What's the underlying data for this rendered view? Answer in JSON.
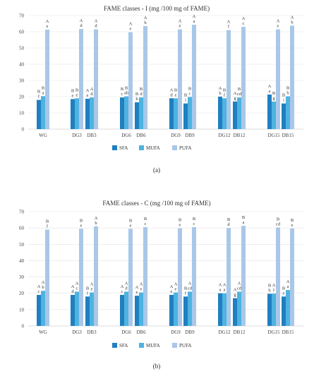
{
  "chart_data": [
    {
      "type": "bar",
      "title": "FAME classes - I     (mg /100 mg of FAME)",
      "caption": "(a)",
      "categories": [
        "WG",
        "DG3",
        "DB3",
        "DG6",
        "DB6",
        "DG9",
        "DB9",
        "DG12",
        "DB12",
        "DG15",
        "DB15"
      ],
      "ylim": [
        0,
        70
      ],
      "yticks": [
        0,
        10,
        20,
        30,
        40,
        50,
        60,
        70
      ],
      "grid": true,
      "legend": "bottom",
      "colors": [
        "#1f7fc1",
        "#4eb3e0",
        "#a9c7e8"
      ],
      "series": [
        {
          "name": "SFA",
          "values": [
            18.0,
            18.5,
            18.7,
            19.5,
            16.5,
            19.0,
            15.8,
            20.0,
            17.0,
            21.3,
            15.8
          ],
          "labels": [
            [
              "B",
              "f"
            ],
            [
              "B",
              "e"
            ],
            [
              "A",
              "e"
            ],
            [
              "B",
              "c"
            ],
            [
              "B",
              "h"
            ],
            [
              "A",
              "d"
            ],
            [
              "B",
              "i"
            ],
            [
              "A",
              "b"
            ],
            [
              "A",
              "g"
            ],
            [
              "A",
              "a"
            ],
            [
              "B",
              "i"
            ]
          ]
        },
        {
          "name": "MUFA",
          "values": [
            20.3,
            19.0,
            19.5,
            20.2,
            19.5,
            19.0,
            19.8,
            19.0,
            19.5,
            17.0,
            20.2
          ],
          "labels": [
            [
              "B",
              "a"
            ],
            [
              "B",
              "e"
            ],
            [
              "A",
              "d"
            ],
            [
              "B",
              "ab"
            ],
            [
              "B",
              "d"
            ],
            [
              "B",
              "e"
            ],
            [
              "B",
              "c"
            ],
            [
              "B",
              "f"
            ],
            [
              "B",
              "cd"
            ],
            [
              "B",
              "g"
            ],
            [
              "B",
              "b"
            ]
          ]
        },
        {
          "name": "PUFA",
          "values": [
            61.3,
            61.7,
            61.5,
            59.7,
            63.5,
            61.5,
            64.3,
            61.0,
            63.0,
            61.5,
            63.8
          ],
          "labels": [
            [
              "A",
              "e"
            ],
            [
              "A",
              "d"
            ],
            [
              "A",
              "d"
            ],
            [
              "A",
              "e"
            ],
            [
              "A",
              "b"
            ],
            [
              "A",
              "e"
            ],
            [
              "A",
              "a"
            ],
            [
              "A",
              "f"
            ],
            [
              "A",
              "c"
            ],
            [
              "A",
              "e"
            ],
            [
              "A",
              "b"
            ]
          ]
        }
      ]
    },
    {
      "type": "bar",
      "title": "FAME classes - C     (mg /100 mg of FAME)",
      "caption": "(b)",
      "categories": [
        "WG",
        "DG3",
        "DB3",
        "DG6",
        "DB6",
        "DG9",
        "DB9",
        "DG12",
        "DB12",
        "DG15",
        "DB15"
      ],
      "ylim": [
        0,
        70
      ],
      "yticks": [
        0,
        10,
        20,
        30,
        40,
        50,
        60,
        70
      ],
      "grid": true,
      "legend": "bottom",
      "colors": [
        "#1f7fc1",
        "#4eb3e0",
        "#a9c7e8"
      ],
      "series": [
        {
          "name": "SFA",
          "values": [
            19.0,
            19.0,
            18.0,
            19.0,
            18.5,
            19.0,
            18.0,
            20.0,
            17.0,
            19.7,
            18.0
          ],
          "labels": [
            [
              "A",
              "c"
            ],
            [
              "A",
              "d"
            ],
            [
              "B",
              "f"
            ],
            [
              "A",
              "c"
            ],
            [
              "A",
              "e"
            ],
            [
              "A",
              "e"
            ],
            [
              "B",
              "f"
            ],
            [
              "A",
              "a"
            ],
            [
              "A",
              "g"
            ],
            [
              "B",
              "b"
            ],
            [
              "B",
              "e"
            ]
          ]
        },
        {
          "name": "MUFA",
          "values": [
            21.5,
            21.0,
            20.5,
            21.0,
            20.5,
            20.5,
            21.0,
            20.0,
            21.0,
            19.8,
            22.0
          ],
          "labels": [
            [
              "A",
              "b"
            ],
            [
              "A",
              "c"
            ],
            [
              "A",
              "e"
            ],
            [
              "A",
              "d"
            ],
            [
              "A",
              "e"
            ],
            [
              "A",
              "e"
            ],
            [
              "A",
              "cd"
            ],
            [
              "A",
              "a"
            ],
            [
              "A",
              "cd"
            ],
            [
              "A",
              "f"
            ],
            [
              "A",
              "a"
            ]
          ]
        },
        {
          "name": "PUFA",
          "values": [
            59.0,
            59.5,
            61.0,
            59.5,
            60.5,
            59.8,
            60.5,
            60.0,
            61.3,
            60.3,
            59.7
          ],
          "labels": [
            [
              "B",
              "f"
            ],
            [
              "B",
              "e"
            ],
            [
              "A",
              "b"
            ],
            [
              "B",
              "e"
            ],
            [
              "B",
              "c"
            ],
            [
              "B",
              "e"
            ],
            [
              "B",
              "c"
            ],
            [
              "B",
              "d"
            ],
            [
              "B",
              "a"
            ],
            [
              "B",
              "cd"
            ],
            [
              "B",
              "e"
            ]
          ]
        }
      ]
    }
  ]
}
